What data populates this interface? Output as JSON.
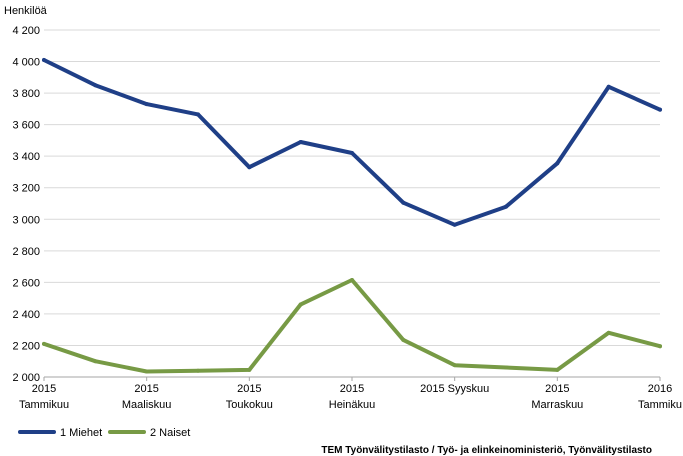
{
  "chart_data": {
    "type": "line",
    "ylabel": "Henkilöä",
    "ylim": [
      2000,
      4200
    ],
    "yticks": [
      2000,
      2200,
      2400,
      2600,
      2800,
      3000,
      3200,
      3400,
      3600,
      3800,
      4000,
      4200
    ],
    "ytick_labels": [
      "2 000",
      "2 200",
      "2 400",
      "2 600",
      "2 800",
      "3 000",
      "3 200",
      "3 400",
      "3 600",
      "3 800",
      "4 000",
      "4 200"
    ],
    "grid": true,
    "legend_position": "bottom-left",
    "x_labels": [
      {
        "index": 0,
        "year": "2015",
        "month": "Tammikuu"
      },
      {
        "index": 2,
        "year": "2015",
        "month": "Maaliskuu"
      },
      {
        "index": 4,
        "year": "2015",
        "month": "Toukokuu"
      },
      {
        "index": 6,
        "year": "2015",
        "month": "Heinäkuu"
      },
      {
        "index": 8,
        "year": "2015 Syyskuu",
        "month": ""
      },
      {
        "index": 10,
        "year": "2015",
        "month": "Marraskuu"
      },
      {
        "index": 12,
        "year": "2016",
        "month": "Tammiku"
      }
    ],
    "series": [
      {
        "name": "1 Miehet",
        "color": "#1f3f87",
        "values": [
          4010,
          3850,
          3730,
          3665,
          3330,
          3490,
          3420,
          3105,
          2965,
          3080,
          3355,
          3840,
          3695
        ]
      },
      {
        "name": "2 Naiset",
        "color": "#779a45",
        "values": [
          2210,
          2100,
          2035,
          2040,
          2045,
          2460,
          2615,
          2235,
          2075,
          2060,
          2045,
          2280,
          2195
        ]
      }
    ],
    "source": "TEM Työnvälitystilasto / Työ- ja elinkeinoministeriö, Työnvälitystilasto"
  }
}
